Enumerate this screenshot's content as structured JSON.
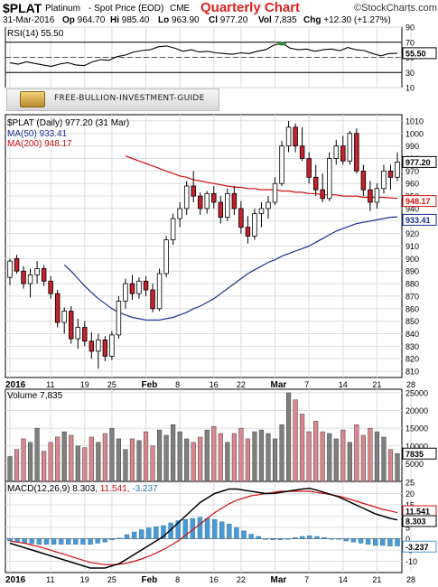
{
  "header": {
    "symbol": "$PLAT",
    "name": "Platinum",
    "subtitle": "- Spot Price (EOD)",
    "exchange": "CME",
    "chart_title": "Quarterly Chart",
    "brand": "©StockCharts.com",
    "date": "31-Mar-2016",
    "open_label": "Op",
    "open": "964.70",
    "high_label": "Hi",
    "high": "985.40",
    "low_label": "Lo",
    "low": "963.90",
    "close_label": "Cl",
    "close": "977.20",
    "vol_label": "Vol",
    "vol": "7,835",
    "chg_label": "Chg",
    "chg": "+12.30 (+1.27%)"
  },
  "banner": {
    "text": "FREE-BULLION-INVESTMENT-GUIDE"
  },
  "rsi_panel": {
    "label": "RSI(14) 55.50",
    "value_tag": "55.50"
  },
  "price_panel": {
    "label": "$PLAT (Daily) 977.20 (31 Mar)",
    "ma50_label": "MA(50) 933.41",
    "ma200_label": "MA(200) 948.17",
    "close_tag": "977.20",
    "ma200_tag": "948.17",
    "ma50_tag": "933.41"
  },
  "volume_panel": {
    "label": "Volume 7,835",
    "value_tag": "7835"
  },
  "macd_panel": {
    "label_black": "MACD(12,26,9) 8.303,",
    "label_red": "11.541,",
    "label_blue": "-3.237",
    "tag_macd": "8.303",
    "tag_signal": "11.541",
    "tag_hist": "-3.237"
  },
  "colors": {
    "up": "#ffffff",
    "down": "#c8202c",
    "ma50": "#1c2f8f",
    "ma200": "#d01010",
    "vol_up": "#7f7f7f",
    "vol_down": "#d9868c",
    "hist": "#4a9ad4"
  },
  "chart_data": [
    {
      "type": "line",
      "name": "RSI(14)",
      "ylim": [
        10,
        90
      ],
      "yticks": [
        90,
        70,
        50,
        30,
        10
      ],
      "reference_lines": [
        70,
        30
      ],
      "values": [
        43,
        41,
        44,
        42,
        40,
        38,
        41,
        43,
        40,
        39,
        44,
        47,
        46,
        51,
        53,
        57,
        59,
        60,
        64,
        65,
        62,
        58,
        60,
        57,
        58,
        56,
        55,
        54,
        56,
        55,
        58,
        60,
        66,
        69,
        62,
        60,
        61,
        58,
        60,
        61,
        59,
        63,
        60,
        59,
        55,
        52,
        55,
        55.5
      ],
      "last": 55.5
    },
    {
      "type": "candlestick",
      "name": "$PLAT (Daily)",
      "ylim": [
        805,
        1015
      ],
      "yticks": [
        810,
        820,
        830,
        840,
        850,
        860,
        870,
        880,
        890,
        900,
        910,
        920,
        930,
        940,
        950,
        960,
        970,
        980,
        990,
        1000,
        1010
      ],
      "x_labels": [
        {
          "label": "2016",
          "index": 0
        },
        {
          "label": "11",
          "index": 6
        },
        {
          "label": "19",
          "index": 11
        },
        {
          "label": "25",
          "index": 15
        },
        {
          "label": "Feb",
          "index": 20
        },
        {
          "label": "8",
          "index": 25
        },
        {
          "label": "16",
          "index": 30
        },
        {
          "label": "22",
          "index": 34
        },
        {
          "label": "Mar",
          "index": 39
        },
        {
          "label": "7",
          "index": 44
        },
        {
          "label": "14",
          "index": 49
        },
        {
          "label": "21",
          "index": 54
        },
        {
          "label": "28",
          "index": 59
        }
      ],
      "ohlc": [
        [
          885,
          900,
          879,
          898
        ],
        [
          900,
          903,
          888,
          890
        ],
        [
          890,
          894,
          876,
          880
        ],
        [
          880,
          892,
          869,
          887
        ],
        [
          887,
          898,
          880,
          892
        ],
        [
          892,
          895,
          878,
          882
        ],
        [
          882,
          886,
          868,
          872
        ],
        [
          872,
          875,
          845,
          849
        ],
        [
          849,
          861,
          840,
          858
        ],
        [
          858,
          862,
          832,
          836
        ],
        [
          836,
          852,
          828,
          845
        ],
        [
          845,
          850,
          830,
          834
        ],
        [
          834,
          841,
          820,
          826
        ],
        [
          826,
          840,
          812,
          835
        ],
        [
          835,
          838,
          818,
          822
        ],
        [
          822,
          842,
          819,
          839
        ],
        [
          839,
          870,
          836,
          866
        ],
        [
          866,
          884,
          860,
          880
        ],
        [
          880,
          887,
          867,
          872
        ],
        [
          872,
          885,
          868,
          882
        ],
        [
          882,
          886,
          870,
          875
        ],
        [
          875,
          880,
          857,
          860
        ],
        [
          860,
          892,
          858,
          888
        ],
        [
          888,
          918,
          885,
          915
        ],
        [
          915,
          936,
          911,
          932
        ],
        [
          932,
          945,
          925,
          940
        ],
        [
          940,
          962,
          935,
          958
        ],
        [
          958,
          970,
          945,
          950
        ],
        [
          950,
          953,
          935,
          940
        ],
        [
          940,
          954,
          936,
          952
        ],
        [
          952,
          958,
          940,
          945
        ],
        [
          945,
          950,
          928,
          933
        ],
        [
          933,
          956,
          930,
          952
        ],
        [
          952,
          958,
          935,
          940
        ],
        [
          940,
          946,
          920,
          925
        ],
        [
          925,
          934,
          912,
          918
        ],
        [
          918,
          940,
          915,
          936
        ],
        [
          936,
          945,
          925,
          940
        ],
        [
          940,
          950,
          932,
          945
        ],
        [
          945,
          965,
          943,
          960
        ],
        [
          960,
          994,
          958,
          990
        ],
        [
          990,
          1010,
          985,
          1005
        ],
        [
          1005,
          1008,
          985,
          990
        ],
        [
          990,
          1005,
          978,
          980
        ],
        [
          980,
          985,
          960,
          965
        ],
        [
          965,
          975,
          950,
          955
        ],
        [
          955,
          968,
          945,
          948
        ],
        [
          948,
          985,
          946,
          980
        ],
        [
          980,
          995,
          975,
          990
        ],
        [
          990,
          998,
          975,
          978
        ],
        [
          978,
          1002,
          975,
          1000
        ],
        [
          1000,
          1004,
          968,
          970
        ],
        [
          970,
          975,
          950,
          955
        ],
        [
          955,
          962,
          938,
          945
        ],
        [
          945,
          960,
          940,
          956
        ],
        [
          956,
          975,
          952,
          970
        ],
        [
          970,
          975,
          955,
          965
        ],
        [
          965,
          985,
          962,
          977.2
        ]
      ],
      "ma50": [
        895,
        890,
        884,
        878,
        873,
        868,
        864,
        860,
        857,
        855,
        853,
        852,
        851,
        851,
        851,
        852,
        853,
        855,
        857,
        860,
        862,
        865,
        868,
        872,
        876,
        880,
        884,
        888,
        891,
        894,
        897,
        899,
        902,
        904,
        906,
        908,
        910,
        913,
        916,
        919,
        922,
        924,
        926,
        928,
        929,
        930,
        931,
        932,
        933,
        933.41
      ],
      "ma200": [
        982,
        980,
        978,
        976,
        974,
        972,
        970,
        968,
        966,
        965,
        963,
        962,
        961,
        960,
        959,
        958,
        957,
        957,
        956,
        956,
        955,
        955,
        955,
        954,
        954,
        953,
        953,
        952,
        952,
        951,
        951,
        951,
        950,
        950,
        950,
        949,
        949,
        949,
        949,
        948.5,
        948.17
      ]
    },
    {
      "type": "bar",
      "name": "Volume",
      "ylim": [
        0,
        26000
      ],
      "yticks": [
        25000,
        20000,
        15000,
        10000,
        5000
      ],
      "values": [
        7000,
        9000,
        12000,
        11000,
        15000,
        8500,
        11000,
        12500,
        14000,
        13000,
        10000,
        9500,
        12500,
        11000,
        13500,
        15000,
        12000,
        9000,
        12000,
        11500,
        14000,
        10000,
        14500,
        13000,
        16000,
        14000,
        12000,
        11000,
        12500,
        14500,
        15500,
        13500,
        11000,
        13500,
        15000,
        12000,
        14000,
        14500,
        13500,
        12000,
        16000,
        25000,
        23000,
        19000,
        14000,
        17000,
        14000,
        13500,
        12000,
        14500,
        11000,
        16000,
        13000,
        15000,
        14000,
        12500,
        9000,
        7835
      ],
      "up_down": "close>open → gray, else pink"
    },
    {
      "type": "line",
      "name": "MACD(12,26,9)",
      "ylim": [
        -15,
        25
      ],
      "yticks": [
        25,
        20,
        15,
        10,
        5,
        0,
        -5,
        -10
      ],
      "series": [
        {
          "name": "MACD",
          "values": [
            -2,
            -3,
            -4,
            -5,
            -6,
            -7,
            -8,
            -9,
            -10,
            -11,
            -12,
            -13,
            -13,
            -13,
            -12,
            -11,
            -9,
            -7,
            -5,
            -3,
            -1,
            1,
            4,
            7,
            10,
            13,
            16,
            18,
            20,
            21,
            22,
            22,
            21.5,
            21,
            20.5,
            20,
            20,
            20.5,
            21,
            21.5,
            22,
            22.3,
            21.5,
            20.5,
            19.5,
            18.5,
            17,
            15.5,
            14,
            12.5,
            11,
            10,
            9,
            8.303
          ]
        },
        {
          "name": "Signal",
          "values": [
            -1,
            -1.5,
            -2,
            -2.8,
            -3.5,
            -4.5,
            -5.5,
            -6.5,
            -7.5,
            -8.5,
            -9.5,
            -10.5,
            -11,
            -11.5,
            -11.5,
            -11.3,
            -10.8,
            -10,
            -9,
            -7.8,
            -6.3,
            -4.8,
            -3,
            -1,
            1.5,
            4,
            6.5,
            9,
            11.5,
            13.5,
            15.5,
            17,
            18,
            19,
            19.5,
            20,
            20.5,
            21,
            21,
            21,
            21,
            21,
            20.5,
            20,
            19.5,
            18.8,
            18,
            17,
            16,
            15,
            14,
            13,
            12.3,
            11.541
          ]
        },
        {
          "name": "Histogram",
          "values": [
            -1,
            -1.5,
            -2,
            -2.2,
            -2.5,
            -2.5,
            -2.5,
            -2.5,
            -2.5,
            -2.5,
            -2.5,
            -2.5,
            -2,
            -1.5,
            -0.5,
            0.3,
            1.8,
            3,
            4,
            4.8,
            5.3,
            5.8,
            7,
            8,
            8.5,
            9,
            9.5,
            9,
            8.5,
            7.5,
            6.5,
            5,
            3.5,
            2,
            1,
            0,
            -0.5,
            -0.5,
            0,
            0.5,
            1,
            1.3,
            1,
            0.5,
            0,
            -0.3,
            -1,
            -1.5,
            -2,
            -2.5,
            -3,
            -3,
            -3.3,
            -3.237
          ]
        }
      ]
    }
  ]
}
